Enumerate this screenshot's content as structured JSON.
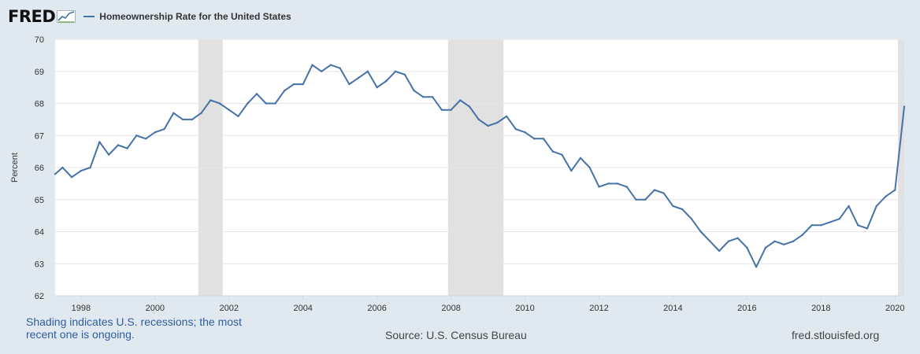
{
  "logo": {
    "text": "FRED"
  },
  "colors": {
    "line": "#4572a7",
    "recession": "#e1e1e1",
    "grid": "#e6e6e6",
    "background": "#e1e9f0",
    "plot_bg": "#ffffff"
  },
  "footer": {
    "note": "Shading indicates U.S. recessions; the most recent one is ongoing.",
    "source": "Source: U.S. Census Bureau",
    "site": "fred.stlouisfed.org"
  },
  "chart_data": {
    "type": "line",
    "title": "",
    "ylabel": "Percent",
    "xlabel": "",
    "xlim": [
      1997.3,
      2020.25
    ],
    "ylim": [
      62,
      70
    ],
    "yticks": [
      62,
      63,
      64,
      65,
      66,
      67,
      68,
      69,
      70
    ],
    "xticks": [
      1998,
      2000,
      2002,
      2004,
      2006,
      2008,
      2010,
      2012,
      2014,
      2016,
      2018,
      2020
    ],
    "grid": true,
    "legend": "top-left",
    "recessions": [
      [
        2001.17,
        2001.83
      ],
      [
        2007.92,
        2009.42
      ],
      [
        2020.08,
        2020.25
      ]
    ],
    "series": [
      {
        "name": "Homeownership Rate for the United States",
        "x": [
          1997.3,
          1997.5,
          1997.75,
          1998.0,
          1998.25,
          1998.5,
          1998.75,
          1999.0,
          1999.25,
          1999.5,
          1999.75,
          2000.0,
          2000.25,
          2000.5,
          2000.75,
          2001.0,
          2001.25,
          2001.5,
          2001.75,
          2002.0,
          2002.25,
          2002.5,
          2002.75,
          2003.0,
          2003.25,
          2003.5,
          2003.75,
          2004.0,
          2004.25,
          2004.5,
          2004.75,
          2005.0,
          2005.25,
          2005.5,
          2005.75,
          2006.0,
          2006.25,
          2006.5,
          2006.75,
          2007.0,
          2007.25,
          2007.5,
          2007.75,
          2008.0,
          2008.25,
          2008.5,
          2008.75,
          2009.0,
          2009.25,
          2009.5,
          2009.75,
          2010.0,
          2010.25,
          2010.5,
          2010.75,
          2011.0,
          2011.25,
          2011.5,
          2011.75,
          2012.0,
          2012.25,
          2012.5,
          2012.75,
          2013.0,
          2013.25,
          2013.5,
          2013.75,
          2014.0,
          2014.25,
          2014.5,
          2014.75,
          2015.0,
          2015.25,
          2015.5,
          2015.75,
          2016.0,
          2016.25,
          2016.5,
          2016.75,
          2017.0,
          2017.25,
          2017.5,
          2017.75,
          2018.0,
          2018.25,
          2018.5,
          2018.75,
          2019.0,
          2019.25,
          2019.5,
          2019.75,
          2020.0,
          2020.25
        ],
        "y": [
          65.8,
          66.0,
          65.7,
          65.9,
          66.0,
          66.8,
          66.4,
          66.7,
          66.6,
          67.0,
          66.9,
          67.1,
          67.2,
          67.7,
          67.5,
          67.5,
          67.7,
          68.1,
          68.0,
          67.8,
          67.6,
          68.0,
          68.3,
          68.0,
          68.0,
          68.4,
          68.6,
          68.6,
          69.2,
          69.0,
          69.2,
          69.1,
          68.6,
          68.8,
          69.0,
          68.5,
          68.7,
          69.0,
          68.9,
          68.4,
          68.2,
          68.2,
          67.8,
          67.8,
          68.1,
          67.9,
          67.5,
          67.3,
          67.4,
          67.6,
          67.2,
          67.1,
          66.9,
          66.9,
          66.5,
          66.4,
          65.9,
          66.3,
          66.0,
          65.4,
          65.5,
          65.5,
          65.4,
          65.0,
          65.0,
          65.3,
          65.2,
          64.8,
          64.7,
          64.4,
          64.0,
          63.7,
          63.4,
          63.7,
          63.8,
          63.5,
          62.9,
          63.5,
          63.7,
          63.6,
          63.7,
          63.9,
          64.2,
          64.2,
          64.3,
          64.4,
          64.8,
          64.2,
          64.1,
          64.8,
          65.1,
          65.3,
          67.9
        ]
      }
    ]
  }
}
